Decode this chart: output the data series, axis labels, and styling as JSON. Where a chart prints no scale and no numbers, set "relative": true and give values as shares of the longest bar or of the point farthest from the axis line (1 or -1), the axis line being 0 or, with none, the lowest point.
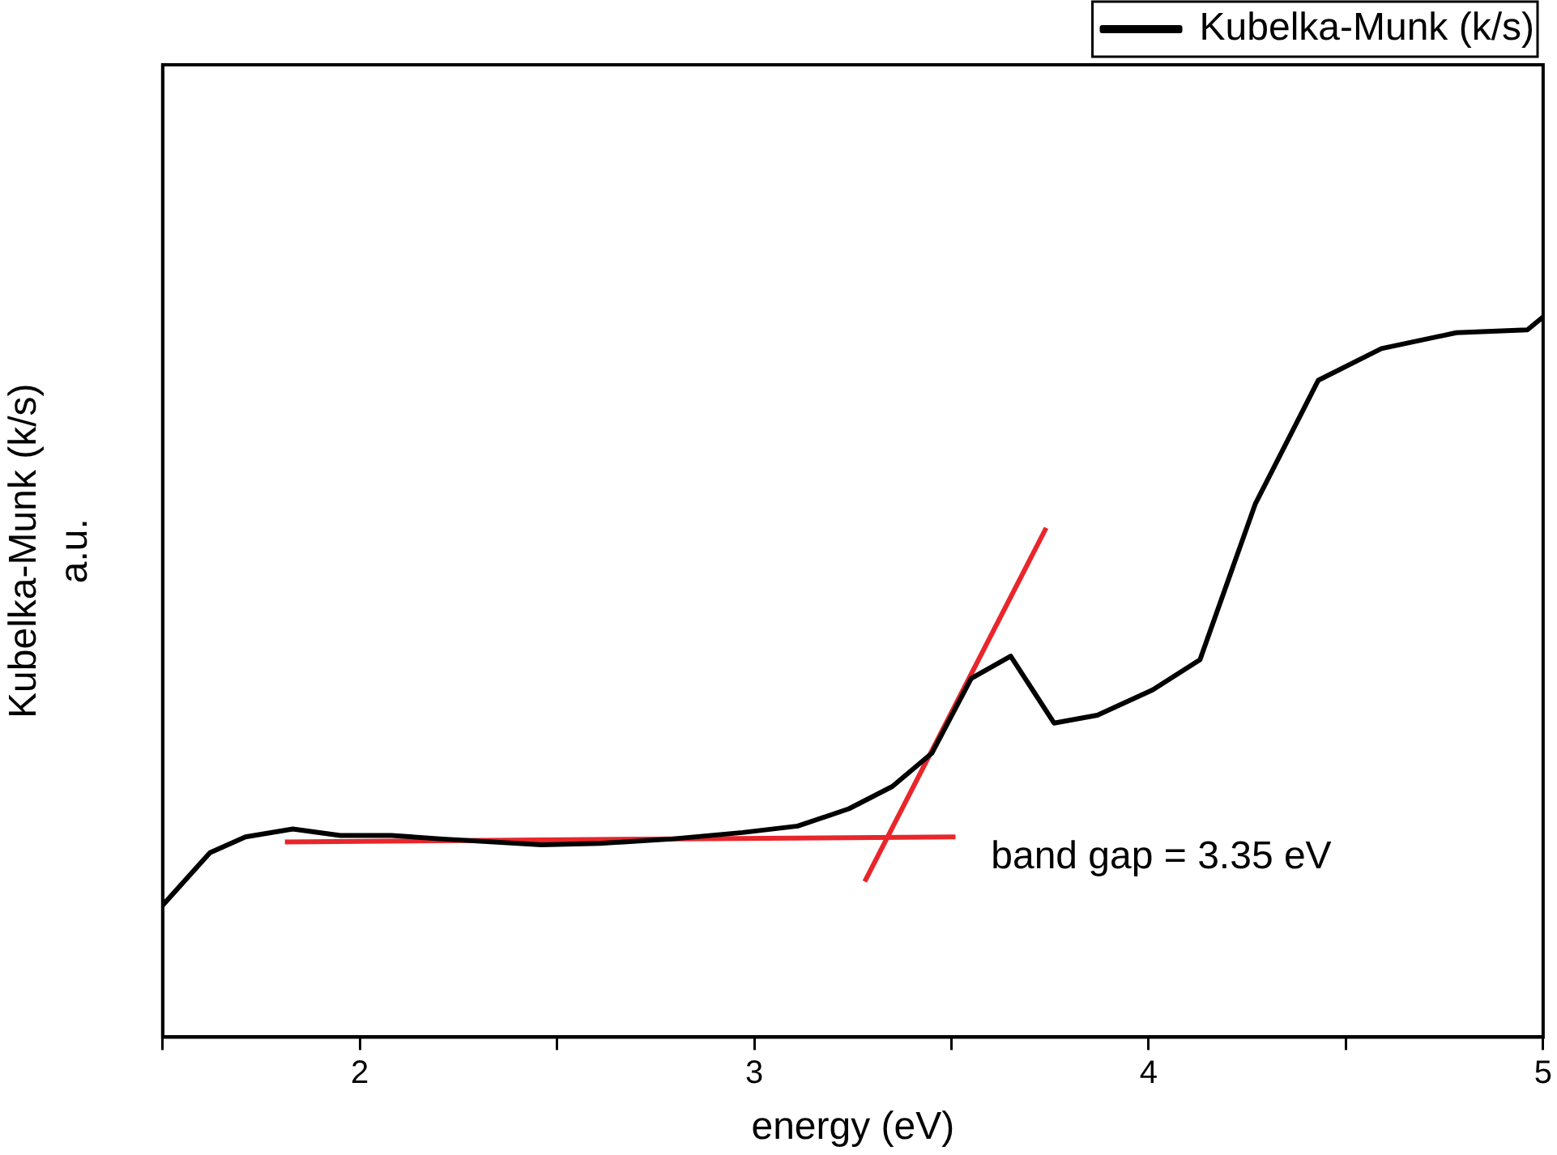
{
  "chart_data": {
    "type": "line",
    "xlabel": "energy (eV)",
    "ylabel": "Kubelka-Munk (k/s)\na.u.",
    "relative": true,
    "xlim": [
      1.5,
      5
    ],
    "xticks": [
      {
        "value": 1.5,
        "label": null
      },
      2,
      {
        "value": 2.5,
        "label": null
      },
      3,
      {
        "value": 3.5,
        "label": null
      },
      4,
      {
        "value": 4.5,
        "label": null
      },
      5
    ],
    "grid": false,
    "legend": "top right",
    "marker": "none",
    "line_style": "solid",
    "annotations": [
      "band gap = 3.35 eV"
    ],
    "series": [
      {
        "name": "Kubelka-Munk (k/s)",
        "color": "#000000",
        "x": [
          1.5,
          1.62,
          1.71,
          1.83,
          1.95,
          2.08,
          2.21,
          2.46,
          2.61,
          2.79,
          2.97,
          3.11,
          3.24,
          3.35,
          3.45,
          3.55,
          3.65,
          3.76,
          3.87,
          4.01,
          4.13,
          4.27,
          4.43,
          4.59,
          4.78,
          4.96,
          5.0
        ],
        "values": [
          0.183,
          0.256,
          0.278,
          0.289,
          0.28,
          0.28,
          0.275,
          0.267,
          0.269,
          0.275,
          0.284,
          0.293,
          0.317,
          0.348,
          0.394,
          0.498,
          0.529,
          0.436,
          0.447,
          0.482,
          0.524,
          0.74,
          0.912,
          0.956,
          0.978,
          0.982,
          1
        ]
      },
      {
        "type": "line",
        "color": "#e8262b",
        "x": [
          1.81,
          3.51
        ],
        "values": [
          0.271,
          0.278
        ]
      },
      {
        "type": "line",
        "color": "#e8262b",
        "x": [
          3.28,
          3.74
        ],
        "values": [
          0.216,
          0.707
        ]
      }
    ]
  }
}
